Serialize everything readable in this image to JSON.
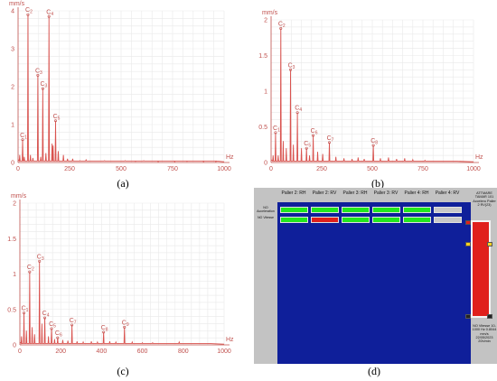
{
  "chart_data": [
    {
      "type": "line",
      "panel": "(a)",
      "y_unit": "mm/s",
      "x_unit": "Hz",
      "xlim": [
        0,
        1000
      ],
      "ylim": [
        0,
        4
      ],
      "x_ticks": [
        "0",
        "250",
        "500",
        "750",
        "1000"
      ],
      "y_ticks": [
        "0",
        "1",
        "2",
        "3",
        "4"
      ],
      "peaks": [
        {
          "label": "C1",
          "x": 22,
          "y": 0.6
        },
        {
          "label": "C2",
          "x": 48,
          "y": 3.9
        },
        {
          "label": "C3",
          "x": 96,
          "y": 2.3
        },
        {
          "label": "C3",
          "x": 120,
          "y": 1.95
        },
        {
          "label": "C4",
          "x": 150,
          "y": 3.85
        },
        {
          "label": "C5",
          "x": 182,
          "y": 1.1
        }
      ],
      "minor": [
        [
          8,
          0.2
        ],
        [
          30,
          0.15
        ],
        [
          60,
          0.2
        ],
        [
          72,
          0.12
        ],
        [
          110,
          0.15
        ],
        [
          135,
          0.25
        ],
        [
          165,
          0.5
        ],
        [
          170,
          0.45
        ],
        [
          195,
          0.3
        ],
        [
          220,
          0.2
        ],
        [
          240,
          0.1
        ],
        [
          265,
          0.1
        ],
        [
          300,
          0.05
        ],
        [
          330,
          0.07
        ],
        [
          380,
          0.04
        ],
        [
          420,
          0.05
        ],
        [
          470,
          0.04
        ],
        [
          520,
          0.05
        ],
        [
          570,
          0.03
        ],
        [
          610,
          0.05
        ],
        [
          680,
          0.02
        ],
        [
          760,
          0.02
        ],
        [
          820,
          0.03
        ],
        [
          900,
          0.02
        ],
        [
          960,
          0.02
        ]
      ]
    },
    {
      "type": "line",
      "panel": "(b)",
      "y_unit": "mm/s",
      "x_unit": "Hz",
      "xlim": [
        0,
        1000
      ],
      "ylim": [
        0,
        2
      ],
      "x_ticks": [
        "0",
        "250",
        "500",
        "750",
        "1000"
      ],
      "y_ticks": [
        "0",
        "0.5",
        "1",
        "1.5",
        "2"
      ],
      "peaks": [
        {
          "label": "C1",
          "x": 22,
          "y": 0.42
        },
        {
          "label": "C2",
          "x": 48,
          "y": 1.88
        },
        {
          "label": "C3",
          "x": 96,
          "y": 1.3
        },
        {
          "label": "C4",
          "x": 130,
          "y": 0.7
        },
        {
          "label": "C5",
          "x": 175,
          "y": 0.2
        },
        {
          "label": "C6",
          "x": 208,
          "y": 0.38
        },
        {
          "label": "C7",
          "x": 288,
          "y": 0.28
        },
        {
          "label": "C8",
          "x": 505,
          "y": 0.24
        }
      ],
      "minor": [
        [
          10,
          0.1
        ],
        [
          35,
          0.1
        ],
        [
          60,
          0.3
        ],
        [
          75,
          0.2
        ],
        [
          110,
          0.25
        ],
        [
          150,
          0.2
        ],
        [
          190,
          0.1
        ],
        [
          230,
          0.15
        ],
        [
          255,
          0.12
        ],
        [
          320,
          0.08
        ],
        [
          360,
          0.06
        ],
        [
          400,
          0.05
        ],
        [
          430,
          0.07
        ],
        [
          460,
          0.05
        ],
        [
          540,
          0.06
        ],
        [
          580,
          0.07
        ],
        [
          620,
          0.05
        ],
        [
          660,
          0.06
        ],
        [
          700,
          0.04
        ],
        [
          760,
          0.03
        ],
        [
          820,
          0.02
        ],
        [
          900,
          0.02
        ]
      ]
    },
    {
      "type": "line",
      "panel": "(c)",
      "y_unit": "mm/s",
      "x_unit": "Hz",
      "xlim": [
        0,
        1000
      ],
      "ylim": [
        0,
        2
      ],
      "x_ticks": [
        "0",
        "200",
        "400",
        "600",
        "800",
        "1000"
      ],
      "y_ticks": [
        "0",
        "0.5",
        "1",
        "1.5",
        "2"
      ],
      "peaks": [
        {
          "label": "C1",
          "x": 20,
          "y": 0.45
        },
        {
          "label": "C2",
          "x": 48,
          "y": 1.03
        },
        {
          "label": "C3",
          "x": 96,
          "y": 1.18
        },
        {
          "label": "C4",
          "x": 122,
          "y": 0.38
        },
        {
          "label": "C5",
          "x": 155,
          "y": 0.23
        },
        {
          "label": "C6",
          "x": 185,
          "y": 0.1
        },
        {
          "label": "C7",
          "x": 255,
          "y": 0.28
        },
        {
          "label": "C8",
          "x": 410,
          "y": 0.18
        },
        {
          "label": "C9",
          "x": 512,
          "y": 0.25
        }
      ],
      "minor": [
        [
          8,
          0.12
        ],
        [
          32,
          0.2
        ],
        [
          60,
          0.25
        ],
        [
          72,
          0.15
        ],
        [
          108,
          0.3
        ],
        [
          140,
          0.12
        ],
        [
          170,
          0.08
        ],
        [
          210,
          0.07
        ],
        [
          235,
          0.06
        ],
        [
          280,
          0.05
        ],
        [
          310,
          0.04
        ],
        [
          350,
          0.05
        ],
        [
          380,
          0.04
        ],
        [
          440,
          0.05
        ],
        [
          470,
          0.04
        ],
        [
          550,
          0.04
        ],
        [
          600,
          0.03
        ],
        [
          650,
          0.03
        ],
        [
          720,
          0.02
        ],
        [
          780,
          0.04
        ],
        [
          850,
          0.02
        ],
        [
          920,
          0.02
        ]
      ]
    }
  ],
  "panel_labels": {
    "a": "(a)",
    "b": "(b)",
    "c": "(c)",
    "d": "(d)"
  },
  "panel_d": {
    "columns": [
      "Palier 2: RH",
      "Palier 2: RV",
      "Palier 3: RH",
      "Palier 3: RV",
      "Palier 4: RH",
      "Palier 4: RV"
    ],
    "rows": [
      {
        "label": "NO Acceleration",
        "cells": [
          "green",
          "green",
          "green",
          "green",
          "green",
          "grey"
        ]
      },
      {
        "label": "NO Vitesse",
        "cells": [
          "green",
          "red",
          "green",
          "green",
          "green",
          "grey"
        ]
      }
    ],
    "side_title": "ATTMARE TAMAR 101 Accelero Palier 2 RV(23)",
    "side_footer": "NO Vitesse 10-1000 Hz 0.8044 mm/s 22/05/2023 20h/min",
    "colors": {
      "green": "#22e81e",
      "red": "#e0201c",
      "grey": "#c8c8c8",
      "bar": "#e0201c",
      "marker": "#ffd21f",
      "blue": "#0f1f9a"
    }
  }
}
